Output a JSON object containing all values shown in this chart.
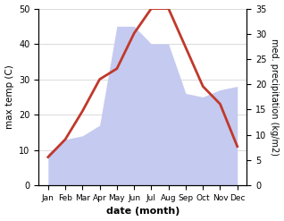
{
  "months": [
    "Jan",
    "Feb",
    "Mar",
    "Apr",
    "May",
    "Jun",
    "Jul",
    "Aug",
    "Sep",
    "Oct",
    "Nov",
    "Dec"
  ],
  "temp": [
    8,
    13,
    21,
    30,
    33,
    43,
    50,
    50,
    39,
    28,
    23,
    11
  ],
  "precip": [
    9,
    13,
    14,
    17,
    45,
    45,
    40,
    40,
    26,
    25,
    27,
    28
  ],
  "temp_color": "#c0392b",
  "precip_fill_color": "#c5caf0",
  "precip_edge_color": "#aab4e8",
  "left_ylim": [
    0,
    50
  ],
  "right_ylim": [
    0,
    35
  ],
  "left_yticks": [
    0,
    10,
    20,
    30,
    40,
    50
  ],
  "right_yticks": [
    0,
    5,
    10,
    15,
    20,
    25,
    30,
    35
  ],
  "xlabel": "date (month)",
  "ylabel_left": "max temp (C)",
  "ylabel_right": "med. precipitation (kg/m2)",
  "bg_color": "#ffffff",
  "grid_color": "#cccccc"
}
